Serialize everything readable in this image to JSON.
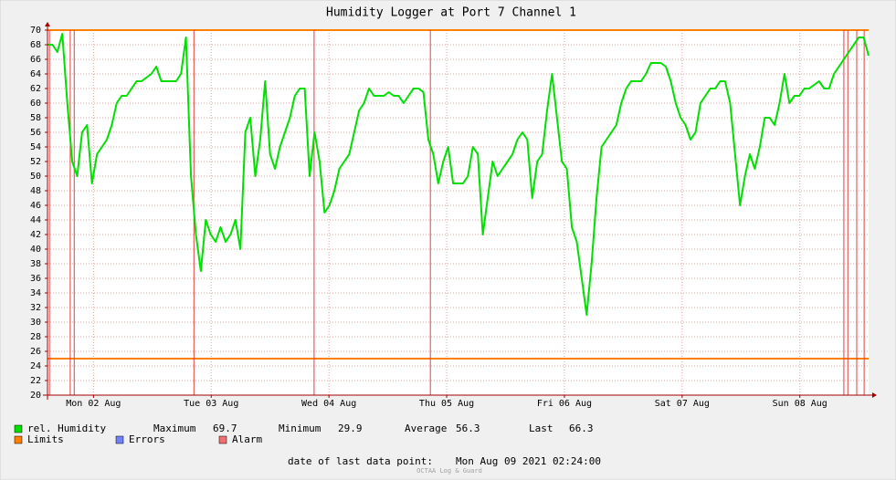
{
  "chart_data": {
    "type": "line",
    "title": "Humidity Logger at Port 7 Channel 1",
    "series": [
      {
        "name": "rel. Humidity",
        "color": "#00e000",
        "values": [
          68,
          68,
          67,
          69.5,
          60,
          52,
          50,
          56,
          57,
          49,
          53,
          54,
          55,
          57,
          60,
          61,
          61,
          62,
          63,
          63,
          63.5,
          64,
          65,
          63,
          63,
          63,
          63,
          64,
          69,
          50,
          42,
          37,
          44,
          42,
          41,
          43,
          41,
          42,
          44,
          40,
          56,
          58,
          50,
          55,
          63,
          53,
          51,
          54,
          56,
          58,
          61,
          62,
          62,
          50,
          56,
          52,
          45,
          46,
          48,
          51,
          52,
          53,
          56,
          59,
          60,
          62,
          61,
          61,
          61,
          61.5,
          61,
          61,
          60,
          61,
          62,
          62,
          61.5,
          55,
          53,
          49,
          52,
          54,
          49,
          49,
          49,
          50,
          54,
          53,
          42,
          47,
          52,
          50,
          51,
          52,
          53,
          55,
          56,
          55,
          47,
          52,
          53,
          59,
          64,
          58,
          52,
          51,
          43,
          41,
          36,
          31,
          38,
          47,
          54,
          55,
          56,
          57,
          60,
          62,
          63,
          63,
          63,
          64,
          65.5,
          65.5,
          65.5,
          65,
          63,
          60,
          58,
          57,
          55,
          56,
          60,
          61,
          62,
          62,
          63,
          63,
          60,
          53,
          46,
          50,
          53,
          51,
          54,
          58,
          58,
          57,
          60,
          64,
          60,
          61,
          61,
          62,
          62,
          62.5,
          63,
          62,
          62,
          64,
          65,
          66,
          67,
          68,
          69,
          69,
          66.5
        ]
      }
    ],
    "limits": {
      "name": "Limits",
      "color": "#ff7f00",
      "values": [
        70,
        25
      ]
    },
    "errors": {
      "name": "Errors",
      "color": "#7080ff"
    },
    "alarms": {
      "name": "Alarm",
      "color": "#f07070",
      "x": [
        0.4,
        4.6,
        5.4,
        29.6,
        53.9,
        77.4,
        161,
        161.8,
        163.6,
        165.1
      ]
    },
    "xlim": [
      0,
      166
    ],
    "xticks": [
      {
        "value": 9.3,
        "label": "Mon 02 Aug"
      },
      {
        "value": 33.1,
        "label": "Tue 03 Aug"
      },
      {
        "value": 56.9,
        "label": "Wed 04 Aug"
      },
      {
        "value": 80.7,
        "label": "Thu 05 Aug"
      },
      {
        "value": 104.5,
        "label": "Fri 06 Aug"
      },
      {
        "value": 128.3,
        "label": "Sat 07 Aug"
      },
      {
        "value": 152.1,
        "label": "Sun 08 Aug"
      }
    ],
    "ylim": [
      20,
      70
    ],
    "yticks": [
      20,
      22,
      24,
      26,
      28,
      30,
      32,
      34,
      36,
      38,
      40,
      42,
      44,
      46,
      48,
      50,
      52,
      54,
      56,
      58,
      60,
      62,
      64,
      66,
      68,
      70
    ],
    "grid": true,
    "stats": [
      {
        "label": "Maximum",
        "value": 69.7
      },
      {
        "label": "Minimum",
        "value": 29.9
      },
      {
        "label": "Average",
        "value": 56.3
      },
      {
        "label": "Last",
        "value": 66.3
      }
    ],
    "footer_label": "date of last data point:",
    "footer_date": "Mon Aug 09 2021 02:24:00",
    "watermark": "OCTAA Log & Guard"
  }
}
